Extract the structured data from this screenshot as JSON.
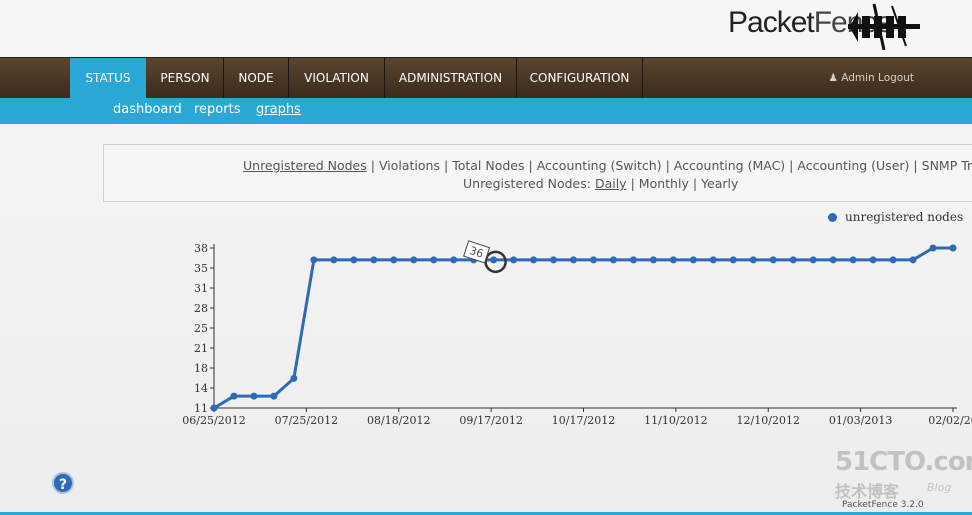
{
  "logo": {
    "text_bold": "Packet",
    "text_thin": "Fence"
  },
  "topnav": {
    "tabs": [
      {
        "label": "STATUS",
        "active": true
      },
      {
        "label": "PERSON"
      },
      {
        "label": "NODE"
      },
      {
        "label": "VIOLATION"
      },
      {
        "label": "ADMINISTRATION"
      },
      {
        "label": "CONFIGURATION"
      }
    ],
    "admin_logout": "Admin Logout"
  },
  "subnav": {
    "items": [
      {
        "label": "dashboard"
      },
      {
        "label": "reports"
      },
      {
        "label": "graphs",
        "active": true
      }
    ]
  },
  "graph_nav": {
    "types": [
      "Unregistered Nodes",
      "Violations",
      "Total Nodes",
      "Accounting (Switch)",
      "Accounting (MAC)",
      "Accounting (User)",
      "SNMP Traps"
    ],
    "period_label": "Unregistered Nodes:",
    "periods": [
      "Daily",
      "Monthly",
      "Yearly"
    ]
  },
  "legend": {
    "label": "unregistered nodes"
  },
  "tooltip": {
    "value": "36"
  },
  "chart_data": {
    "type": "line",
    "series": [
      {
        "name": "unregistered nodes",
        "color": "#2f6ab5",
        "values": [
          11,
          13,
          13,
          13,
          16,
          36,
          36,
          36,
          36,
          36,
          36,
          36,
          36,
          36,
          36,
          36,
          36,
          36,
          36,
          36,
          36,
          36,
          36,
          36,
          36,
          36,
          36,
          36,
          36,
          36,
          36,
          36,
          36,
          36,
          36,
          36,
          38,
          38
        ]
      }
    ],
    "x_tick_labels": [
      "06/25/2012",
      "07/25/2012",
      "08/18/2012",
      "09/17/2012",
      "10/17/2012",
      "11/10/2012",
      "12/10/2012",
      "01/03/2013",
      "02/02/20"
    ],
    "y_tick_labels": [
      "11",
      "14",
      "18",
      "21",
      "25",
      "28",
      "31",
      "35",
      "38"
    ],
    "ylim": [
      11,
      38
    ],
    "highlight_index": 14
  },
  "help": {
    "glyph": "?"
  },
  "watermark": {
    "line1": "51CTO.com",
    "line2": "技术博客",
    "line3": "Blog"
  },
  "version": "PacketFence 3.2.0"
}
